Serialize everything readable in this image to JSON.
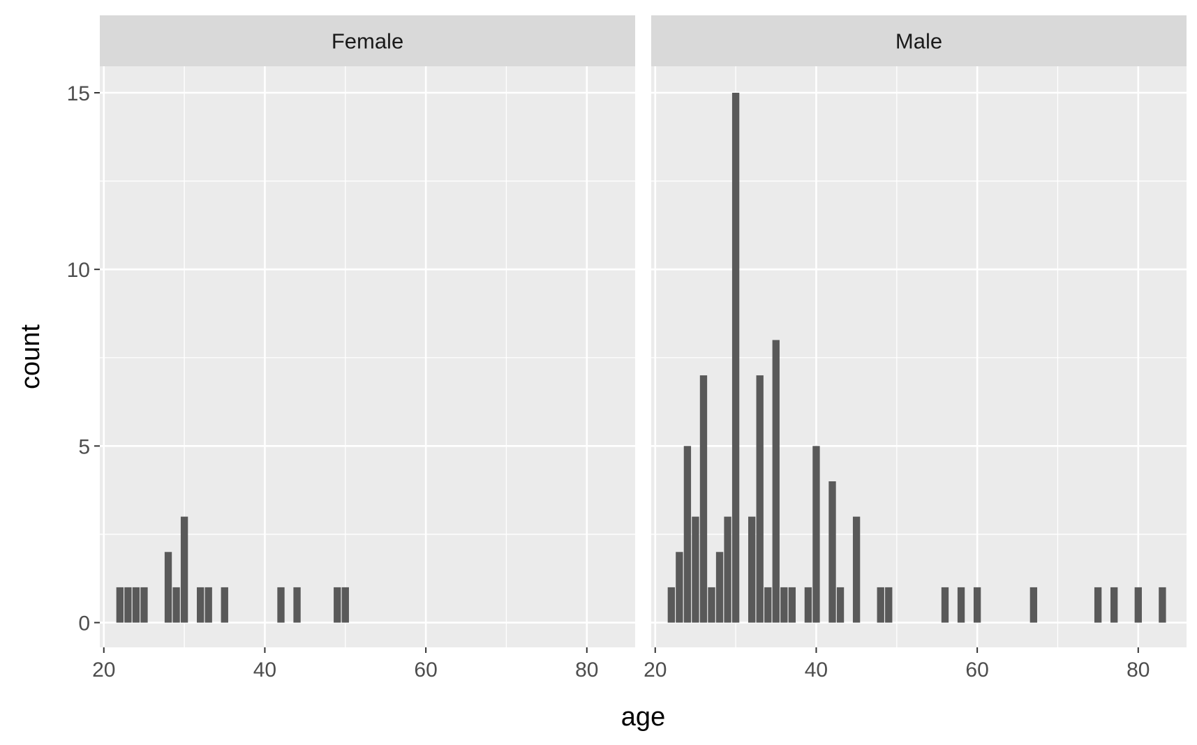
{
  "chart_data": {
    "type": "bar",
    "xlabel": "age",
    "ylabel": "count",
    "xlim": [
      19.5,
      86
    ],
    "ylim": [
      -0.7,
      15.75
    ],
    "x_ticks": [
      20,
      40,
      60,
      80
    ],
    "y_ticks": [
      0,
      5,
      10,
      15
    ],
    "bin_width": 1,
    "grid": true,
    "colors": {
      "panel_bg": "#ebebeb",
      "strip_bg": "#d9d9d9",
      "grid": "#ffffff",
      "bar": "#595959",
      "tick": "#333333"
    },
    "facets": [
      {
        "label": "Female",
        "bars": [
          {
            "x": 22,
            "count": 1
          },
          {
            "x": 23,
            "count": 1
          },
          {
            "x": 24,
            "count": 1
          },
          {
            "x": 25,
            "count": 1
          },
          {
            "x": 28,
            "count": 2
          },
          {
            "x": 29,
            "count": 1
          },
          {
            "x": 30,
            "count": 3
          },
          {
            "x": 32,
            "count": 1
          },
          {
            "x": 33,
            "count": 1
          },
          {
            "x": 35,
            "count": 1
          },
          {
            "x": 42,
            "count": 1
          },
          {
            "x": 44,
            "count": 1
          },
          {
            "x": 49,
            "count": 1
          },
          {
            "x": 50,
            "count": 1
          }
        ]
      },
      {
        "label": "Male",
        "bars": [
          {
            "x": 22,
            "count": 1
          },
          {
            "x": 23,
            "count": 2
          },
          {
            "x": 24,
            "count": 5
          },
          {
            "x": 25,
            "count": 3
          },
          {
            "x": 26,
            "count": 7
          },
          {
            "x": 27,
            "count": 1
          },
          {
            "x": 28,
            "count": 2
          },
          {
            "x": 29,
            "count": 3
          },
          {
            "x": 30,
            "count": 15
          },
          {
            "x": 32,
            "count": 3
          },
          {
            "x": 33,
            "count": 7
          },
          {
            "x": 34,
            "count": 1
          },
          {
            "x": 35,
            "count": 8
          },
          {
            "x": 36,
            "count": 1
          },
          {
            "x": 37,
            "count": 1
          },
          {
            "x": 39,
            "count": 1
          },
          {
            "x": 40,
            "count": 5
          },
          {
            "x": 42,
            "count": 4
          },
          {
            "x": 43,
            "count": 1
          },
          {
            "x": 45,
            "count": 3
          },
          {
            "x": 48,
            "count": 1
          },
          {
            "x": 49,
            "count": 1
          },
          {
            "x": 56,
            "count": 1
          },
          {
            "x": 58,
            "count": 1
          },
          {
            "x": 60,
            "count": 1
          },
          {
            "x": 67,
            "count": 1
          },
          {
            "x": 75,
            "count": 1
          },
          {
            "x": 77,
            "count": 1
          },
          {
            "x": 80,
            "count": 1
          },
          {
            "x": 83,
            "count": 1
          }
        ]
      }
    ]
  }
}
